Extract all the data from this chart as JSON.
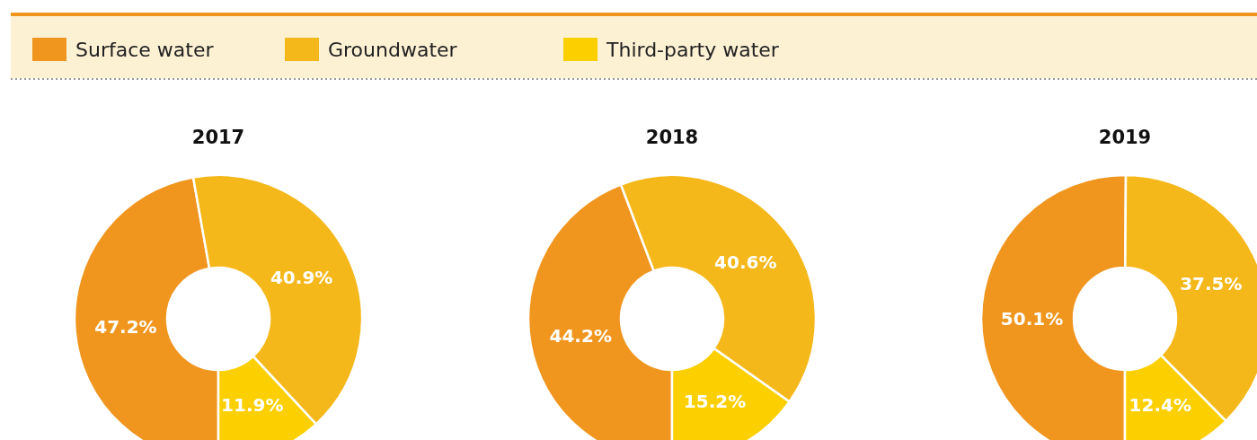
{
  "chart_data": [
    {
      "type": "donut",
      "title": "2017",
      "legend": "top",
      "categories": [
        "Surface water",
        "Groundwater",
        "Third-party water"
      ],
      "values": [
        47.2,
        40.9,
        11.9
      ],
      "value_labels": [
        "47.2%",
        "40.9%",
        "11.9%"
      ],
      "colors": [
        "#f0961f",
        "#f5b81b",
        "#fccf00"
      ]
    },
    {
      "type": "donut",
      "title": "2018",
      "categories": [
        null,
        null,
        null
      ],
      "values": [
        44.2,
        40.6,
        15.2
      ],
      "value_labels": [
        "44.2%",
        "40.6%",
        "15.2%"
      ],
      "colors": [
        "#f0961f",
        "#f5b81b",
        "#fccf00"
      ]
    },
    {
      "type": "donut",
      "title": "2019",
      "categories": [
        null,
        null,
        null
      ],
      "values": [
        50.1,
        37.5,
        12.4
      ],
      "value_labels": [
        "50.1%",
        "37.5%",
        "12.4%"
      ],
      "colors": [
        "#f0961f",
        "#f5b81b",
        "#fccf00"
      ]
    }
  ]
}
